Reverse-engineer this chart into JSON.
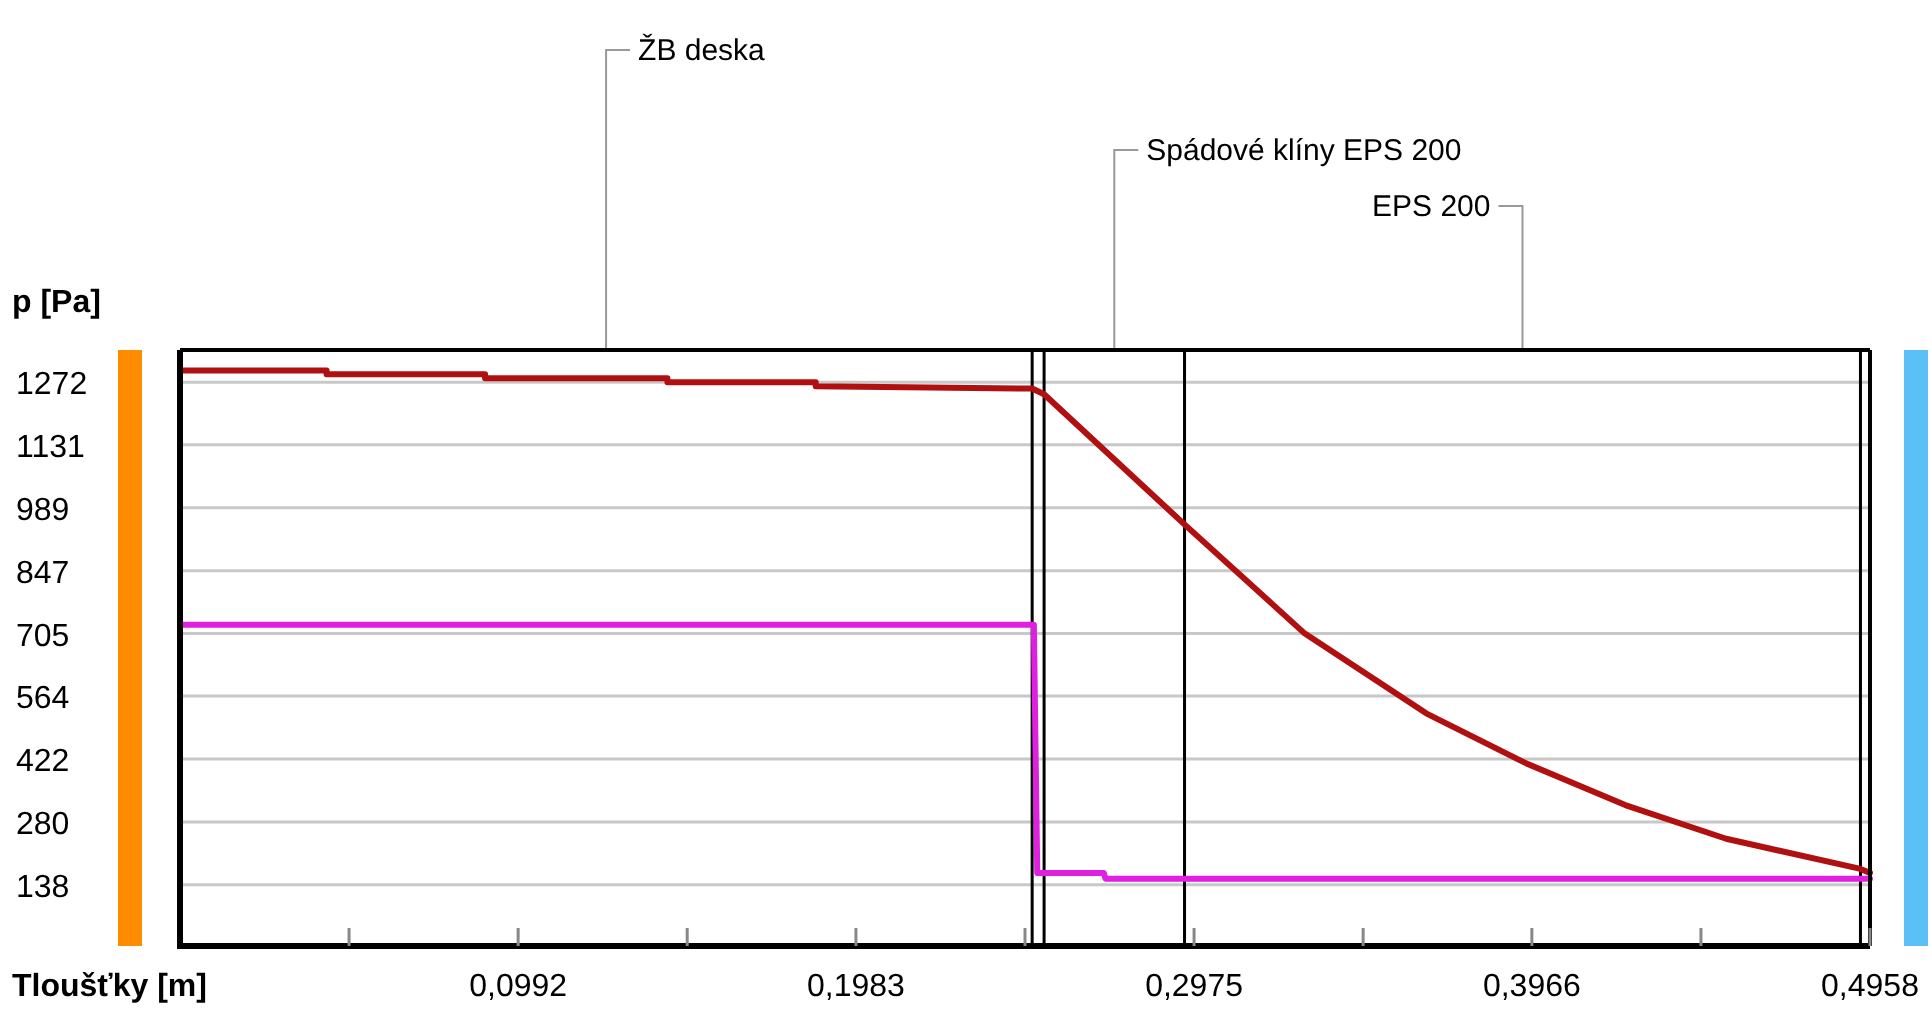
{
  "chart_data": {
    "type": "line",
    "xlabel": "Tloušťky [m]",
    "ylabel": "p [Pa]",
    "xlim": [
      0,
      0.4958
    ],
    "ylim": [
      0,
      1345
    ],
    "xticks": [
      {
        "value": 0.0496,
        "label": null
      },
      {
        "value": 0.0992,
        "label": "0,0992"
      },
      {
        "value": 0.1488,
        "label": null
      },
      {
        "value": 0.1983,
        "label": "0,1983"
      },
      {
        "value": 0.2479,
        "label": null
      },
      {
        "value": 0.2975,
        "label": "0,2975"
      },
      {
        "value": 0.3471,
        "label": null
      },
      {
        "value": 0.3966,
        "label": "0,3966"
      },
      {
        "value": 0.4462,
        "label": null
      },
      {
        "value": 0.4958,
        "label": "0,4958"
      }
    ],
    "yticks": [
      138,
      280,
      422,
      564,
      705,
      847,
      989,
      1131,
      1272
    ],
    "grid": "y",
    "series": [
      {
        "color": "#b01010",
        "x": [
          0,
          0.043,
          0.043,
          0.0895,
          0.0895,
          0.143,
          0.143,
          0.1865,
          0.1865,
          0.25,
          0.2535,
          0.2946,
          0.33,
          0.3656,
          0.395,
          0.424,
          0.4536,
          0.493,
          0.4958
        ],
        "values": [
          1299,
          1299,
          1290,
          1290,
          1281,
          1281,
          1272,
          1272,
          1263,
          1258,
          1245,
          952,
          705,
          525,
          412,
          318,
          242,
          174,
          165
        ]
      },
      {
        "color": "#e020e0",
        "x": [
          0,
          0.2505,
          0.2515,
          0.271,
          0.2715,
          0.4958
        ],
        "values": [
          725,
          725,
          165,
          165,
          152,
          152
        ]
      }
    ],
    "ref_lines": [
      {
        "axis": "x",
        "value": 0.25,
        "color": "#000000"
      },
      {
        "axis": "x",
        "value": 0.2535,
        "color": "#000000"
      },
      {
        "axis": "x",
        "value": 0.2947,
        "color": "#000000"
      },
      {
        "axis": "x",
        "value": 0.493,
        "color": "#000000"
      }
    ],
    "annotations": [
      "ŽB deska",
      "Spádové klíny EPS 200",
      "EPS 200"
    ]
  }
}
